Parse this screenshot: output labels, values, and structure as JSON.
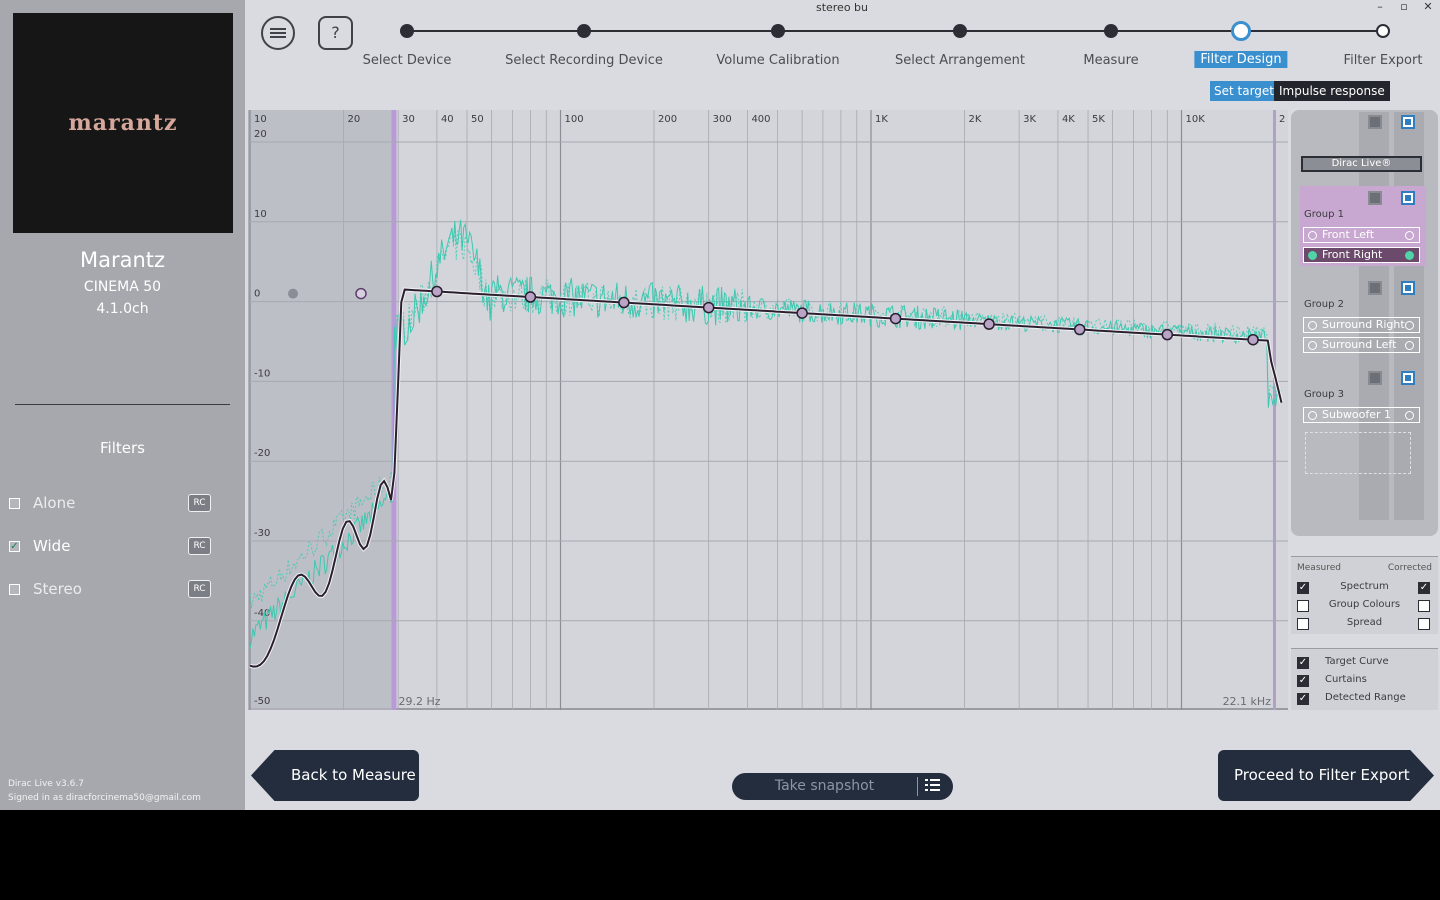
{
  "window": {
    "title": "stereo bu",
    "minimize_label": "–",
    "restore_label": "▫",
    "close_label": "✕"
  },
  "device": {
    "logo_text": "marantz",
    "brand": "Marantz",
    "model": "CINEMA 50",
    "channels": "4.1.0ch"
  },
  "filters": {
    "heading": "Filters",
    "items": [
      {
        "label": "Alone",
        "checked": false,
        "badge": "RC"
      },
      {
        "label": "Wide",
        "checked": true,
        "badge": "RC"
      },
      {
        "label": "Stereo",
        "checked": false,
        "badge": "RC"
      }
    ]
  },
  "footer": {
    "version": "Dirac Live v3.6.7",
    "signed_in": "Signed in as diracforcinema50@gmail.com"
  },
  "toolbar": {
    "help_label": "?"
  },
  "steps": [
    {
      "label": "Select Device",
      "state": "done"
    },
    {
      "label": "Select Recording Device",
      "state": "done"
    },
    {
      "label": "Volume Calibration",
      "state": "done"
    },
    {
      "label": "Select Arrangement",
      "state": "done"
    },
    {
      "label": "Measure",
      "state": "done"
    },
    {
      "label": "Filter Design",
      "state": "current"
    },
    {
      "label": "Filter Export",
      "state": "future"
    }
  ],
  "subtabs": {
    "set_target": "Set target",
    "impulse_response": "Impulse response"
  },
  "chart": {
    "x_ticks": [
      "10",
      "20",
      "30",
      "40",
      "50",
      "100",
      "200",
      "300",
      "400",
      "1K",
      "2K",
      "3K",
      "4K",
      "5K",
      "10K",
      "2"
    ],
    "y_ticks": [
      "20",
      "10",
      "0",
      "-10",
      "-20",
      "-30",
      "-40",
      "-50"
    ],
    "low_curtain_label": "29.2 Hz",
    "high_curtain_label": "22.1 kHz",
    "colors": {
      "measured": "#3cc9b0",
      "target": "#2a1f2e",
      "curtain": "#b89ad6"
    }
  },
  "panel": {
    "dirac_label": "Dirac Live®",
    "groups": [
      {
        "label": "Group 1",
        "channels": [
          {
            "name": "Front Left",
            "selected": false
          },
          {
            "name": "Front Right",
            "selected": true
          }
        ]
      },
      {
        "label": "Group 2",
        "channels": [
          {
            "name": "Surround Right",
            "selected": false
          },
          {
            "name": "Surround Left",
            "selected": false
          }
        ]
      },
      {
        "label": "Group 3",
        "channels": [
          {
            "name": "Subwoofer 1",
            "selected": false
          }
        ]
      }
    ]
  },
  "legend": {
    "measured_label": "Measured",
    "corrected_label": "Corrected",
    "rows": [
      {
        "label": "Spectrum",
        "measured": true,
        "corrected": true
      },
      {
        "label": "Group Colours",
        "measured": false,
        "corrected": false
      },
      {
        "label": "Spread",
        "measured": false,
        "corrected": false
      }
    ],
    "options": [
      {
        "label": "Target Curve",
        "checked": true
      },
      {
        "label": "Curtains",
        "checked": true
      },
      {
        "label": "Detected Range",
        "checked": true
      }
    ]
  },
  "bottom": {
    "back_label": "Back to Measure",
    "proceed_label": "Proceed to Filter Export",
    "snapshot_label": "Take snapshot"
  }
}
